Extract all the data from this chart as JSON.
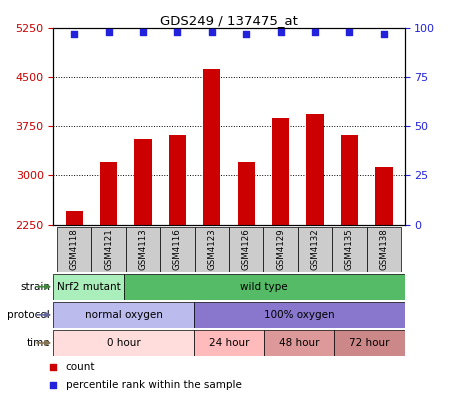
{
  "title": "GDS249 / 137475_at",
  "samples": [
    "GSM4118",
    "GSM4121",
    "GSM4113",
    "GSM4116",
    "GSM4123",
    "GSM4126",
    "GSM4129",
    "GSM4132",
    "GSM4135",
    "GSM4138"
  ],
  "counts": [
    2450,
    3200,
    3550,
    3620,
    4620,
    3200,
    3870,
    3930,
    3620,
    3120
  ],
  "percentiles": [
    97,
    98,
    98,
    98,
    98,
    97,
    98,
    98,
    98,
    97
  ],
  "ylim_left": [
    2250,
    5250
  ],
  "ylim_right": [
    0,
    100
  ],
  "bar_color": "#cc0000",
  "dot_color": "#2222dd",
  "grid_color": "#000000",
  "strain_nrf2_color": "#aaeebb",
  "strain_wild_color": "#55bb66",
  "protocol_normal_color": "#bbbbee",
  "protocol_100_color": "#8877cc",
  "time_0_color": "#ffdddd",
  "time_24_color": "#ffbbbb",
  "time_48_color": "#dd9999",
  "time_72_color": "#cc8888",
  "sample_box_color": "#cccccc",
  "strain_nrf2_label": "Nrf2 mutant",
  "strain_wild_label": "wild type",
  "protocol_normal_label": "normal oxygen",
  "protocol_100_label": "100% oxygen",
  "time_labels": [
    "0 hour",
    "24 hour",
    "48 hour",
    "72 hour"
  ],
  "legend_count_label": "count",
  "legend_percentile_label": "percentile rank within the sample",
  "yticks_left": [
    2250,
    3000,
    3750,
    4500,
    5250
  ],
  "yticks_right": [
    0,
    25,
    50,
    75,
    100
  ],
  "strain_arrow_color": "#448844",
  "protocol_arrow_color": "#666699",
  "time_arrow_color": "#887755"
}
